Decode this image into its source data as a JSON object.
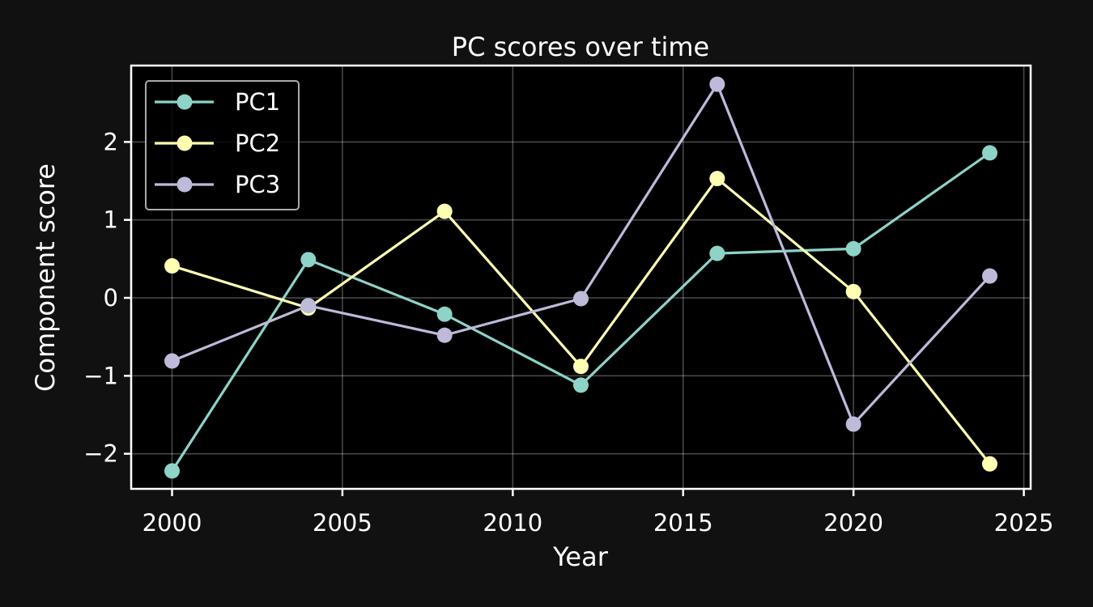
{
  "chart_data": {
    "type": "line",
    "title": "PC scores over time",
    "xlabel": "Year",
    "ylabel": "Component score",
    "x": [
      2000,
      2004,
      2008,
      2012,
      2016,
      2020,
      2024
    ],
    "xlim": [
      1998.8,
      2025.2
    ],
    "ylim": [
      -2.45,
      2.98
    ],
    "xticks": [
      2000,
      2005,
      2010,
      2015,
      2020,
      2025
    ],
    "yticks": [
      -2,
      -1,
      0,
      1,
      2
    ],
    "ytick_labels": [
      "−2",
      "−1",
      "0",
      "1",
      "2"
    ],
    "grid": true,
    "legend_position": "top-left",
    "series": [
      {
        "name": "PC1",
        "color": "#8dd3c7",
        "values": [
          -2.22,
          0.49,
          -0.21,
          -1.12,
          0.57,
          0.63,
          1.86
        ]
      },
      {
        "name": "PC2",
        "color": "#ffffb3",
        "values": [
          0.41,
          -0.13,
          1.11,
          -0.88,
          1.53,
          0.08,
          -2.13
        ]
      },
      {
        "name": "PC3",
        "color": "#bebada",
        "values": [
          -0.81,
          -0.1,
          -0.48,
          -0.01,
          2.74,
          -1.62,
          0.28
        ]
      }
    ]
  }
}
